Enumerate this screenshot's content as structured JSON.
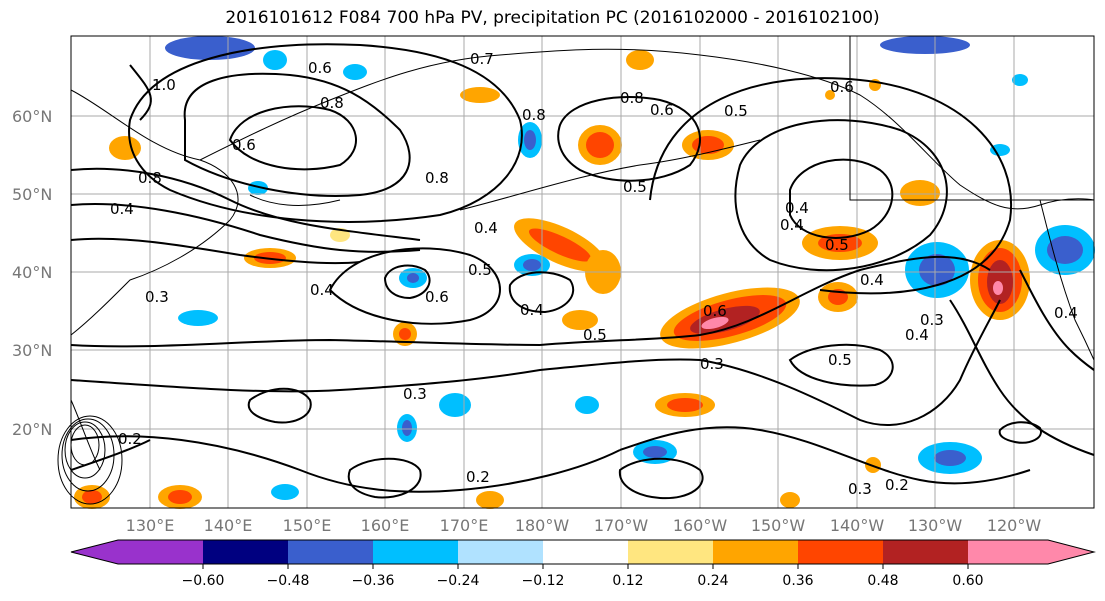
{
  "title": "2016101612 F084 700 hPa PV, precipitation PC (2016102000 - 2016102100)",
  "lat_labels": [
    "60°N",
    "50°N",
    "40°N",
    "30°N",
    "20°N"
  ],
  "lon_labels": [
    "130°E",
    "140°E",
    "150°E",
    "160°E",
    "170°E",
    "180°W",
    "170°W",
    "160°W",
    "150°W",
    "140°W",
    "130°W",
    "120°W"
  ],
  "contour_labels": [
    "1.0",
    "0.6",
    "0.7",
    "0.8",
    "0.6",
    "0.8",
    "0.8",
    "0.5",
    "0.6",
    "0.8",
    "0.4",
    "0.8",
    "0.6",
    "0.5",
    "0.4",
    "0.5",
    "0.4",
    "0.4",
    "0.3",
    "0.6",
    "0.5",
    "0.4",
    "0.5",
    "0.6",
    "0.3",
    "0.4",
    "0.5",
    "0.3",
    "0.4",
    "0.3",
    "0.2",
    "0.2",
    "0.3",
    "0.2",
    "0.4",
    "0.4"
  ],
  "colorbar": {
    "colors": [
      "#9932cc",
      "#000080",
      "#3a5fcd",
      "#00bfff",
      "#b0e2ff",
      "#ffffff",
      "#ffe680",
      "#ffa500",
      "#ff4500",
      "#b22222",
      "#ff88aa"
    ],
    "ticks": [
      "−0.60",
      "−0.48",
      "−0.36",
      "−0.24",
      "−0.12",
      "0.12",
      "0.24",
      "0.36",
      "0.48",
      "0.60"
    ]
  }
}
